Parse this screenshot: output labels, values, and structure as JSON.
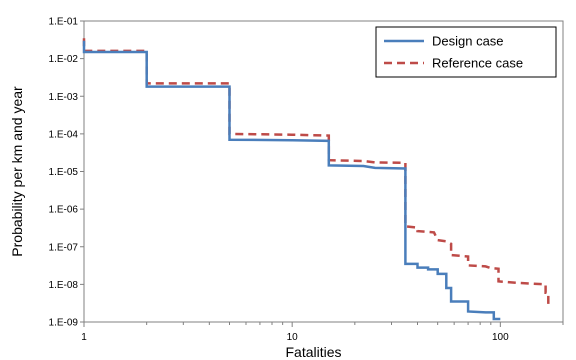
{
  "chart_data": {
    "type": "line",
    "title": "",
    "xlabel": "Fatalities",
    "ylabel": "Probability per km and year",
    "x_scale": "log",
    "y_scale": "log",
    "xlim": [
      1,
      200
    ],
    "ylim": [
      1e-09,
      0.1
    ],
    "x_ticks": [
      {
        "value": 1,
        "label": "1"
      },
      {
        "value": 10,
        "label": "10"
      },
      {
        "value": 100,
        "label": "100"
      }
    ],
    "y_ticks": [
      {
        "value": 0.1,
        "label": "1.E-01"
      },
      {
        "value": 0.01,
        "label": "1.E-02"
      },
      {
        "value": 0.001,
        "label": "1.E-03"
      },
      {
        "value": 0.0001,
        "label": "1.E-04"
      },
      {
        "value": 1e-05,
        "label": "1.E-05"
      },
      {
        "value": 1e-06,
        "label": "1.E-06"
      },
      {
        "value": 1e-07,
        "label": "1.E-07"
      },
      {
        "value": 1e-08,
        "label": "1.E-08"
      },
      {
        "value": 1e-09,
        "label": "1.E-09"
      }
    ],
    "grid": false,
    "legend_position": "top-right",
    "series": [
      {
        "name": "Design case",
        "color": "#4a7ebb",
        "style": "solid",
        "points": [
          [
            1,
            0.03
          ],
          [
            1,
            0.015
          ],
          [
            2,
            0.015
          ],
          [
            2,
            0.0018
          ],
          [
            5,
            0.0018
          ],
          [
            5,
            7e-05
          ],
          [
            10,
            6.8e-05
          ],
          [
            15,
            6.5e-05
          ],
          [
            15,
            1.45e-05
          ],
          [
            22,
            1.4e-05
          ],
          [
            25,
            1.25e-05
          ],
          [
            35,
            1.2e-05
          ],
          [
            35,
            3.5e-08
          ],
          [
            40,
            3.5e-08
          ],
          [
            40,
            2.8e-08
          ],
          [
            45,
            2.8e-08
          ],
          [
            45,
            2.5e-08
          ],
          [
            50,
            2.5e-08
          ],
          [
            50,
            1.9e-08
          ],
          [
            55,
            1.9e-08
          ],
          [
            55,
            8e-09
          ],
          [
            58,
            8e-09
          ],
          [
            58,
            3.5e-09
          ],
          [
            70,
            3.5e-09
          ],
          [
            70,
            1.9e-09
          ],
          [
            85,
            1.8e-09
          ],
          [
            93,
            1.8e-09
          ],
          [
            93,
            1.2e-09
          ],
          [
            100,
            1.2e-09
          ]
        ]
      },
      {
        "name": "Reference case",
        "color": "#be4b48",
        "style": "dashed",
        "points": [
          [
            1,
            0.035
          ],
          [
            1,
            0.016
          ],
          [
            2,
            0.016
          ],
          [
            2,
            0.0022
          ],
          [
            5,
            0.0022
          ],
          [
            5,
            0.0001
          ],
          [
            10,
            9.5e-05
          ],
          [
            15,
            9e-05
          ],
          [
            15,
            2e-05
          ],
          [
            22,
            1.9e-05
          ],
          [
            25,
            1.75e-05
          ],
          [
            35,
            1.7e-05
          ],
          [
            35,
            3.5e-07
          ],
          [
            40,
            3.2e-07
          ],
          [
            40,
            2.6e-07
          ],
          [
            48,
            2.4e-07
          ],
          [
            50,
            1.5e-07
          ],
          [
            55,
            1.4e-07
          ],
          [
            58,
            1.2e-07
          ],
          [
            58,
            6e-08
          ],
          [
            70,
            5.5e-08
          ],
          [
            70,
            3.2e-08
          ],
          [
            85,
            3e-08
          ],
          [
            90,
            2.7e-08
          ],
          [
            98,
            2.6e-08
          ],
          [
            98,
            1.2e-08
          ],
          [
            120,
            1.1e-08
          ],
          [
            165,
            1e-08
          ],
          [
            165,
            6e-09
          ],
          [
            170,
            6e-09
          ],
          [
            170,
            2.5e-09
          ]
        ]
      }
    ]
  }
}
